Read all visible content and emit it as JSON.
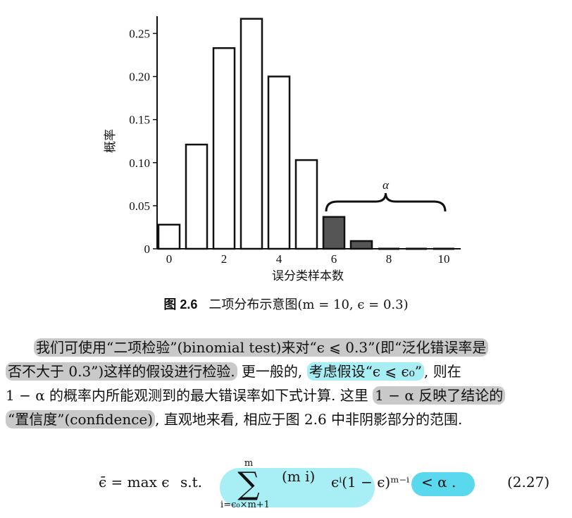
{
  "chart_data": {
    "type": "bar",
    "categories": [
      0,
      1,
      2,
      3,
      4,
      5,
      6,
      7,
      8,
      9,
      10
    ],
    "values": [
      0.028,
      0.121,
      0.233,
      0.267,
      0.2,
      0.103,
      0.037,
      0.009,
      0.001,
      0.0001,
      0.0
    ],
    "shaded_from": 6,
    "x_ticks": [
      "0",
      "2",
      "4",
      "6",
      "8",
      "10"
    ],
    "y_ticks": [
      "0",
      "0.05",
      "0.10",
      "0.15",
      "0.20",
      "0.25"
    ],
    "ylim": [
      0,
      0.27
    ],
    "xlabel": "误分类样本数",
    "ylabel": "概率",
    "annotation": "α",
    "colors": {
      "open_bar": "#ffffff",
      "shaded_bar": "#555555",
      "stroke": "#111111"
    }
  },
  "caption": {
    "figure_number": "图 2.6",
    "text": "二项分布示意图(m = 10, ϵ = 0.3)"
  },
  "paragraph": {
    "l1a": "我们可使用“二项检验”(binomial test)来对“ϵ ⩽ 0.3”(即“泛化错误率是",
    "l2a": "否不大于 0.3”)这样的假设进行检验.",
    "l2b": " 更一般的, ",
    "l2c": "考虑假设“ϵ ⩽ ϵ₀”",
    "l2d": ", 则在",
    "l3a": "1 − α 的概率内所能观测到的最大错误率如下式计算. 这里 ",
    "l3b": "1 − α 反映了结论的",
    "l4a": "“置信度”(confidence)",
    "l4b": ", 直观地来看, 相应于图 2.6 中非阴影部分的范围."
  },
  "formula": {
    "lhs": "ϵ̄ = max ϵ",
    "st": "s.t.",
    "sum_top": "m",
    "sum_bottom": "i=ϵ₀×m+1",
    "binom": "(m i)",
    "rest": "ϵⁱ(1 − ϵ)ᵐ⁻ⁱ",
    "lt": "< α .",
    "number": "(2.27)"
  }
}
